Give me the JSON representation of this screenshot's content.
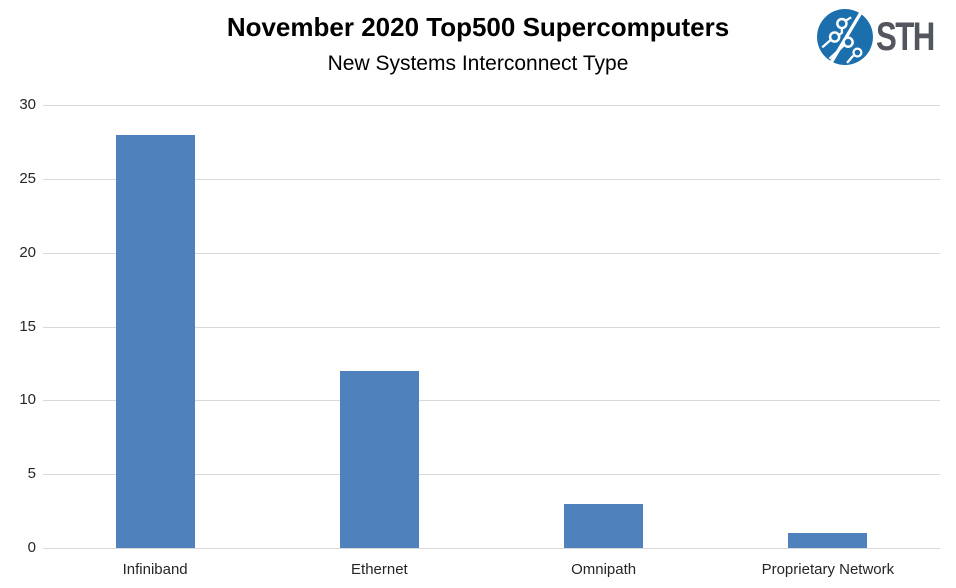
{
  "header": {
    "title": "November 2020 Top500 Supercomputers",
    "subtitle": "New Systems Interconnect Type",
    "logo_text": "STH"
  },
  "colors": {
    "bar": "#4f81bd",
    "gridline": "#d9d9d9",
    "title_text": "#000000",
    "axis_text": "#262626",
    "logo_blue": "#1b6fad",
    "logo_text": "#54565f",
    "background": "#ffffff"
  },
  "chart_data": {
    "type": "bar",
    "title": "November 2020 Top500 Supercomputers",
    "subtitle": "New Systems Interconnect Type",
    "categories": [
      "Infiniband",
      "Ethernet",
      "Omnipath",
      "Proprietary Network"
    ],
    "values": [
      28,
      12,
      3,
      1
    ],
    "xlabel": "",
    "ylabel": "",
    "ylim": [
      0,
      30
    ],
    "yticks": [
      0,
      5,
      10,
      15,
      20,
      25,
      30
    ],
    "grid": "horizontal-only",
    "legend": "none",
    "bar_orientation": "vertical"
  }
}
